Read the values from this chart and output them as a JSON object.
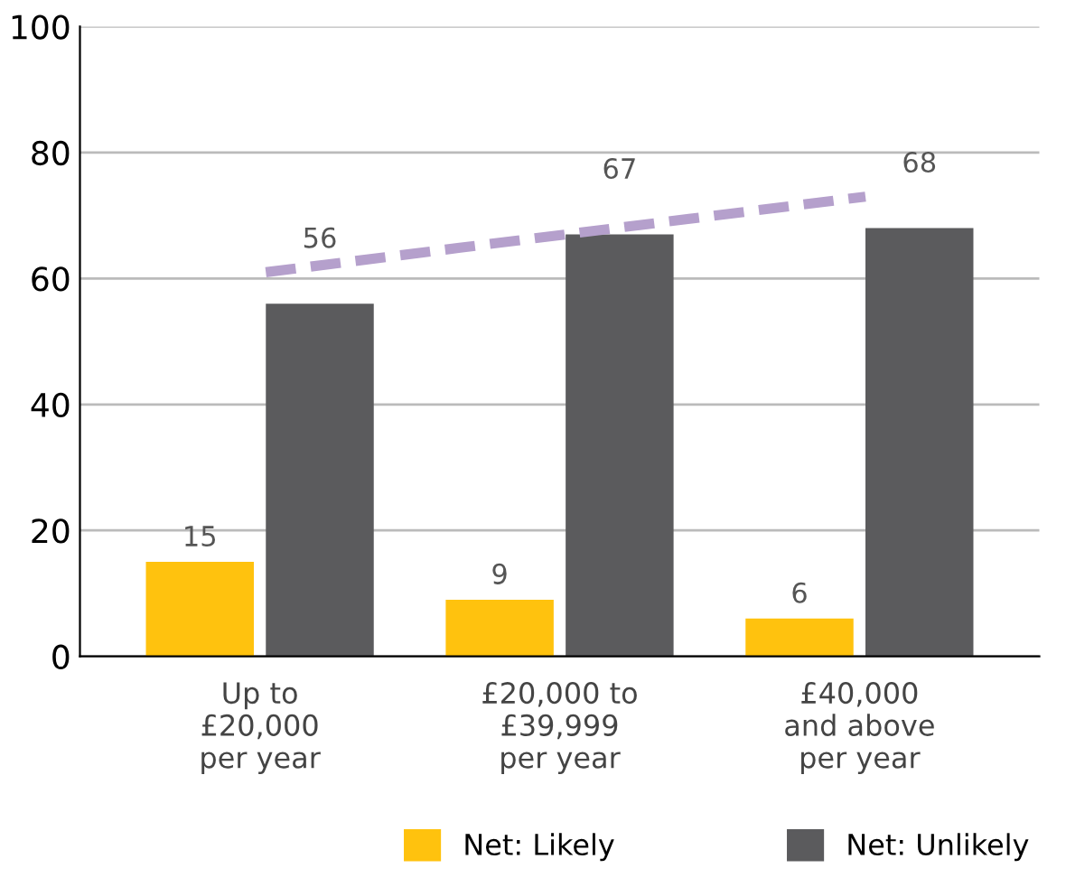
{
  "chart_data": {
    "type": "bar",
    "categories": [
      "Up to\n£20,000\nper year",
      "£20,000 to\n£39,999\nper year",
      "£40,000\nand above\nper year"
    ],
    "series": [
      {
        "name": "Net: Likely",
        "color": "#ffc20e",
        "values": [
          15,
          9,
          6
        ],
        "value_labels": [
          "15",
          "9",
          "6"
        ]
      },
      {
        "name": "Net: Unlikely",
        "color": "#5b5b5d",
        "values": [
          56,
          67,
          68
        ],
        "value_labels": [
          "56",
          "67",
          "68"
        ]
      },
      {
        "type": "line",
        "color": "#b5a0cc",
        "values": [
          61,
          67,
          73
        ],
        "line_style": "dashed",
        "marker": "none"
      }
    ],
    "ylim": [
      0,
      100
    ],
    "yticks": [
      0,
      20,
      40,
      60,
      80,
      100
    ],
    "grid": "y",
    "legend": "bottom"
  }
}
